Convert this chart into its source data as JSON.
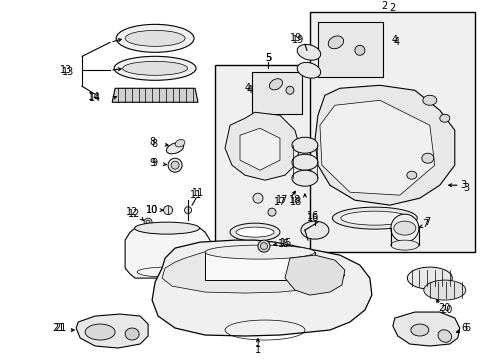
{
  "bg_color": "#ffffff",
  "line_color": "#000000",
  "gray_fill": "#e8e8e8",
  "fig_width": 4.89,
  "fig_height": 3.6,
  "dpi": 100
}
